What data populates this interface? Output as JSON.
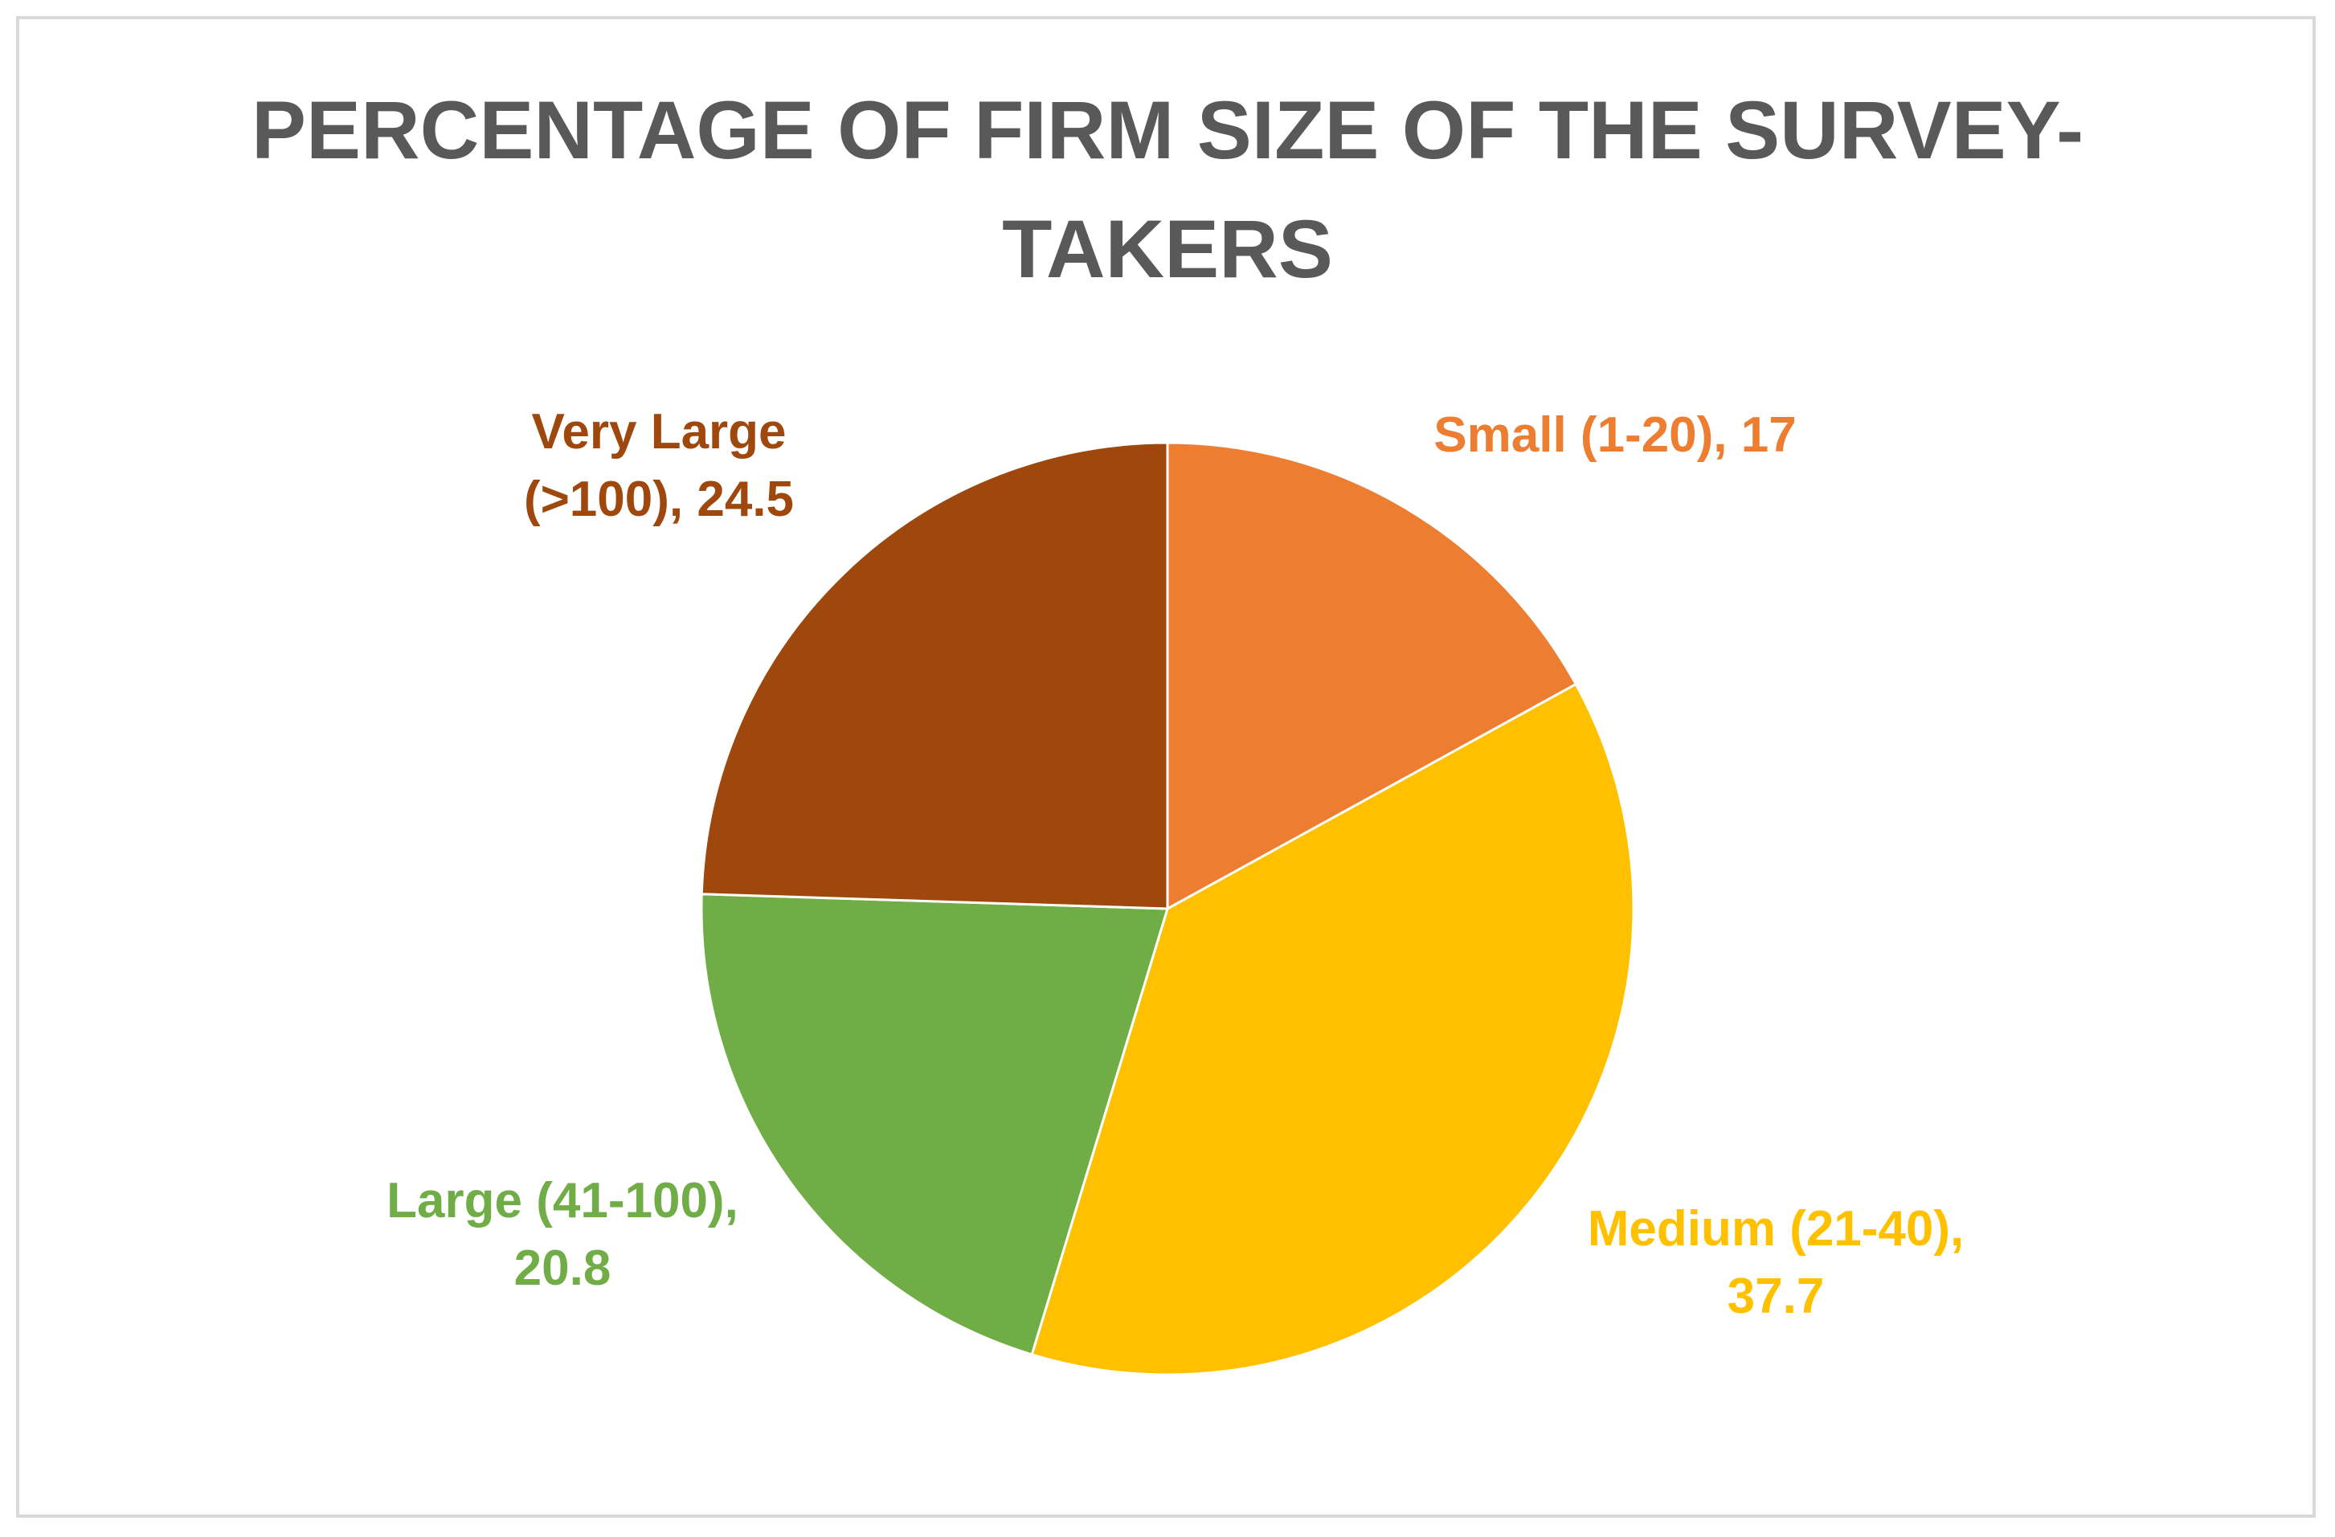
{
  "chart_data": {
    "type": "pie",
    "title_lines": [
      "PERCENTAGE OF FIRM SIZE OF THE SURVEY-",
      "TAKERS"
    ],
    "legend": "none",
    "slices": [
      {
        "label": "Small (1-20)",
        "value": 17,
        "display_value": "17",
        "color": "#ED7D31",
        "label_lines": [
          "Small (1-20), 17"
        ]
      },
      {
        "label": "Medium (21-40)",
        "value": 37.7,
        "display_value": "37.7",
        "color": "#FFC000",
        "label_lines": [
          "Medium (21-40),",
          "37.7"
        ]
      },
      {
        "label": "Large (41-100)",
        "value": 20.8,
        "display_value": "20.8",
        "color": "#70AD47",
        "label_lines": [
          "Large (41-100),",
          "20.8"
        ]
      },
      {
        "label": "Very Large (>100)",
        "value": 24.5,
        "display_value": "24.5",
        "color": "#9E480E",
        "label_lines": [
          "Very Large",
          "(>100), 24.5"
        ]
      }
    ]
  }
}
